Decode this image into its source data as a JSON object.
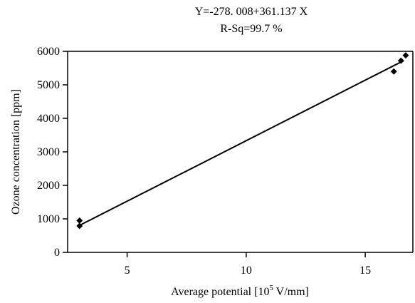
{
  "chart_data": {
    "type": "scatter",
    "title": "Y=-278. 008+361.137 X",
    "subtitle": "R-Sq=99.7 %",
    "xlabel_prefix": "Average potential [10",
    "xlabel_sup": "5",
    "xlabel_suffix": " V/mm]",
    "ylabel": "Ozone concentration [ppm]",
    "xlim": [
      2.5,
      17
    ],
    "ylim": [
      0,
      6000
    ],
    "x_ticks": [
      5,
      10,
      15
    ],
    "y_ticks": [
      0,
      1000,
      2000,
      3000,
      4000,
      5000,
      6000
    ],
    "grid": false,
    "series": [
      {
        "points": [
          {
            "x": 3.0,
            "y": 950
          },
          {
            "x": 3.0,
            "y": 790
          },
          {
            "x": 16.2,
            "y": 5400
          },
          {
            "x": 16.5,
            "y": 5720
          },
          {
            "x": 16.7,
            "y": 5880
          }
        ]
      }
    ],
    "fit": {
      "intercept": -278.008,
      "slope": 361.137,
      "x_range": [
        3.0,
        16.6
      ]
    }
  }
}
